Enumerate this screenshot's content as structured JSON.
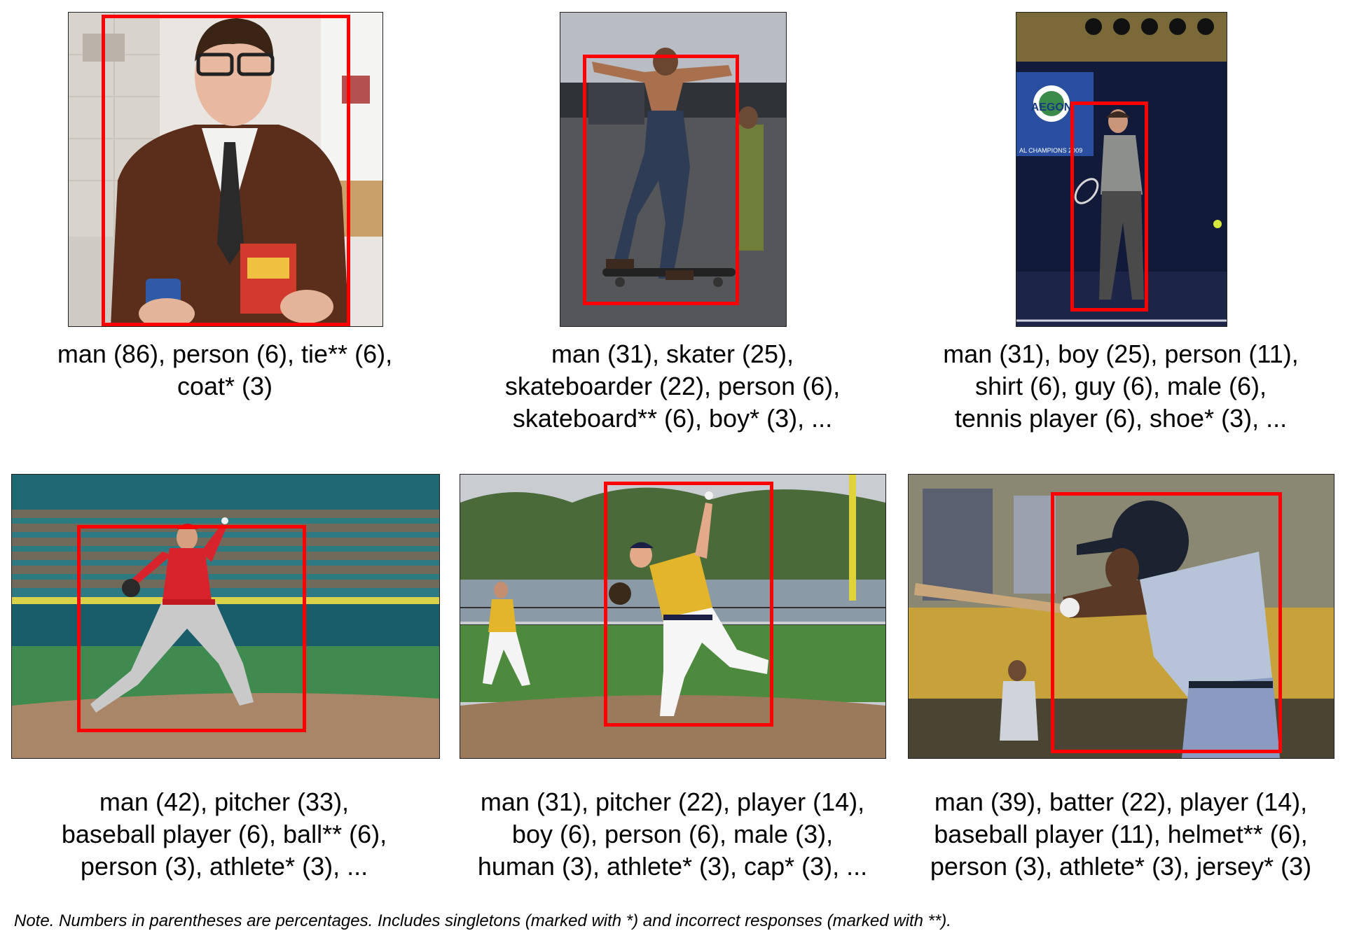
{
  "figure": {
    "panels": [
      {
        "subject": "man in brown coat and tie holding a can and a box",
        "caption_lines": [
          "man (86), person (6), tie** (6),",
          "coat* (3)"
        ]
      },
      {
        "subject": "shirtless skateboarder grinding",
        "caption_lines": [
          "man (31), skater (25),",
          "skateboarder (22), person (6),",
          "skateboard** (6), boy* (3), ..."
        ]
      },
      {
        "subject": "boy holding tennis racket on indoor court",
        "logo_text": "AEGON",
        "banner_text": "AL CHAMPIONS 2009",
        "caption_lines": [
          "man (31), boy (25), person (11),",
          "shirt (6), guy (6), male (6),",
          "tennis player (6), shoe* (3), ..."
        ]
      },
      {
        "subject": "pitcher in red jersey throwing",
        "caption_lines": [
          "man (42), pitcher (33),",
          "baseball player (6), ball** (6),",
          "person (3), athlete* (3), ..."
        ]
      },
      {
        "subject": "pitcher in yellow jersey throwing",
        "caption_lines": [
          "man (31), pitcher (22), player (14),",
          "boy (6), person (6), male (3),",
          "human (3), athlete* (3), cap* (3), ..."
        ]
      },
      {
        "subject": "batter in grey uniform swinging",
        "caption_lines": [
          "man (39), batter (22), player (14),",
          "baseball player (11), helmet** (6),",
          "person (3), athlete* (3), jersey* (3)"
        ]
      }
    ],
    "note": "Note.  Numbers in parentheses are percentages. Includes singletons (marked with *) and incorrect responses (marked with **).",
    "colors": {
      "bbox": "#ff0000"
    }
  }
}
